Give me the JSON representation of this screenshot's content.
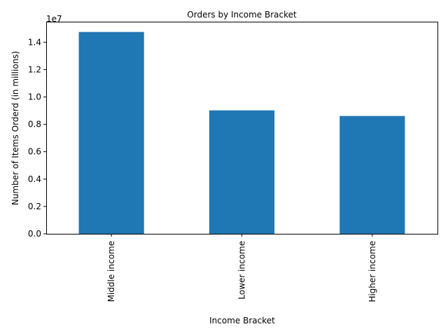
{
  "chart_data": {
    "type": "bar",
    "title": "Orders by Income Bracket",
    "xlabel": "Income Bracket",
    "ylabel": "Number of Items Orderd (in millions)",
    "categories": [
      "Middle income",
      "Lower income",
      "Higher income"
    ],
    "values": [
      14750000,
      9020000,
      8610000
    ],
    "ylim": [
      0,
      15500000
    ],
    "yticks": [
      0,
      2000000,
      4000000,
      6000000,
      8000000,
      10000000,
      12000000,
      14000000
    ],
    "ytick_labels": [
      "0.0",
      "0.2",
      "0.4",
      "0.6",
      "0.8",
      "1.0",
      "1.2",
      "1.4"
    ],
    "offset_label": "1e7",
    "bar_color": "#1f77b4",
    "grid": false,
    "legend": false
  }
}
